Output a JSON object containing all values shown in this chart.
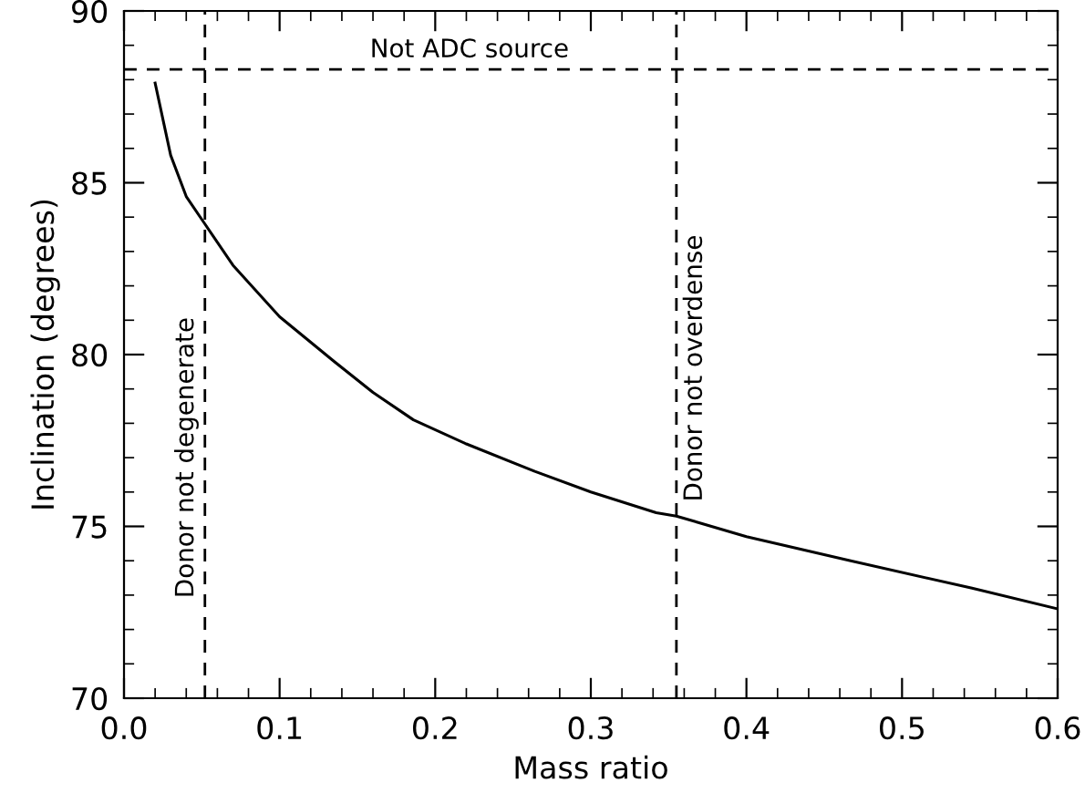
{
  "chart_data": {
    "type": "line",
    "xlabel": "Mass ratio",
    "ylabel": "Inclination (degrees)",
    "xlim": [
      0.0,
      0.6
    ],
    "ylim": [
      70,
      90
    ],
    "xticks": [
      {
        "value": 0.0,
        "label": "0.0"
      },
      0.1,
      0.2,
      0.3,
      0.4,
      0.5,
      0.6
    ],
    "yticks": [
      70,
      75,
      80,
      85,
      90
    ],
    "series": [
      {
        "color": "#000000",
        "x": [
          0.02,
          0.03,
          0.04,
          0.052,
          0.07,
          0.1,
          0.135,
          0.16,
          0.186,
          0.22,
          0.264,
          0.3,
          0.342,
          0.355,
          0.4,
          0.467,
          0.545,
          0.6
        ],
        "values": [
          87.9,
          85.8,
          84.6,
          83.8,
          82.6,
          81.1,
          79.8,
          78.9,
          78.1,
          77.4,
          76.6,
          76.0,
          75.4,
          75.3,
          74.7,
          74.0,
          73.2,
          72.6
        ]
      }
    ],
    "ref_lines": [
      {
        "axis": "y",
        "value": 88.3,
        "label": "Not ADC source",
        "line_style": "dashed",
        "color": "#000000"
      },
      {
        "axis": "x",
        "value": 0.052,
        "label": "Donor not degenerate",
        "line_style": "dashed",
        "color": "#000000"
      },
      {
        "axis": "x",
        "value": 0.355,
        "label": "Donor not overdense",
        "line_style": "dashed",
        "color": "#000000"
      }
    ],
    "grid": false,
    "legend": false,
    "marker": "none",
    "line_style": "solid"
  }
}
